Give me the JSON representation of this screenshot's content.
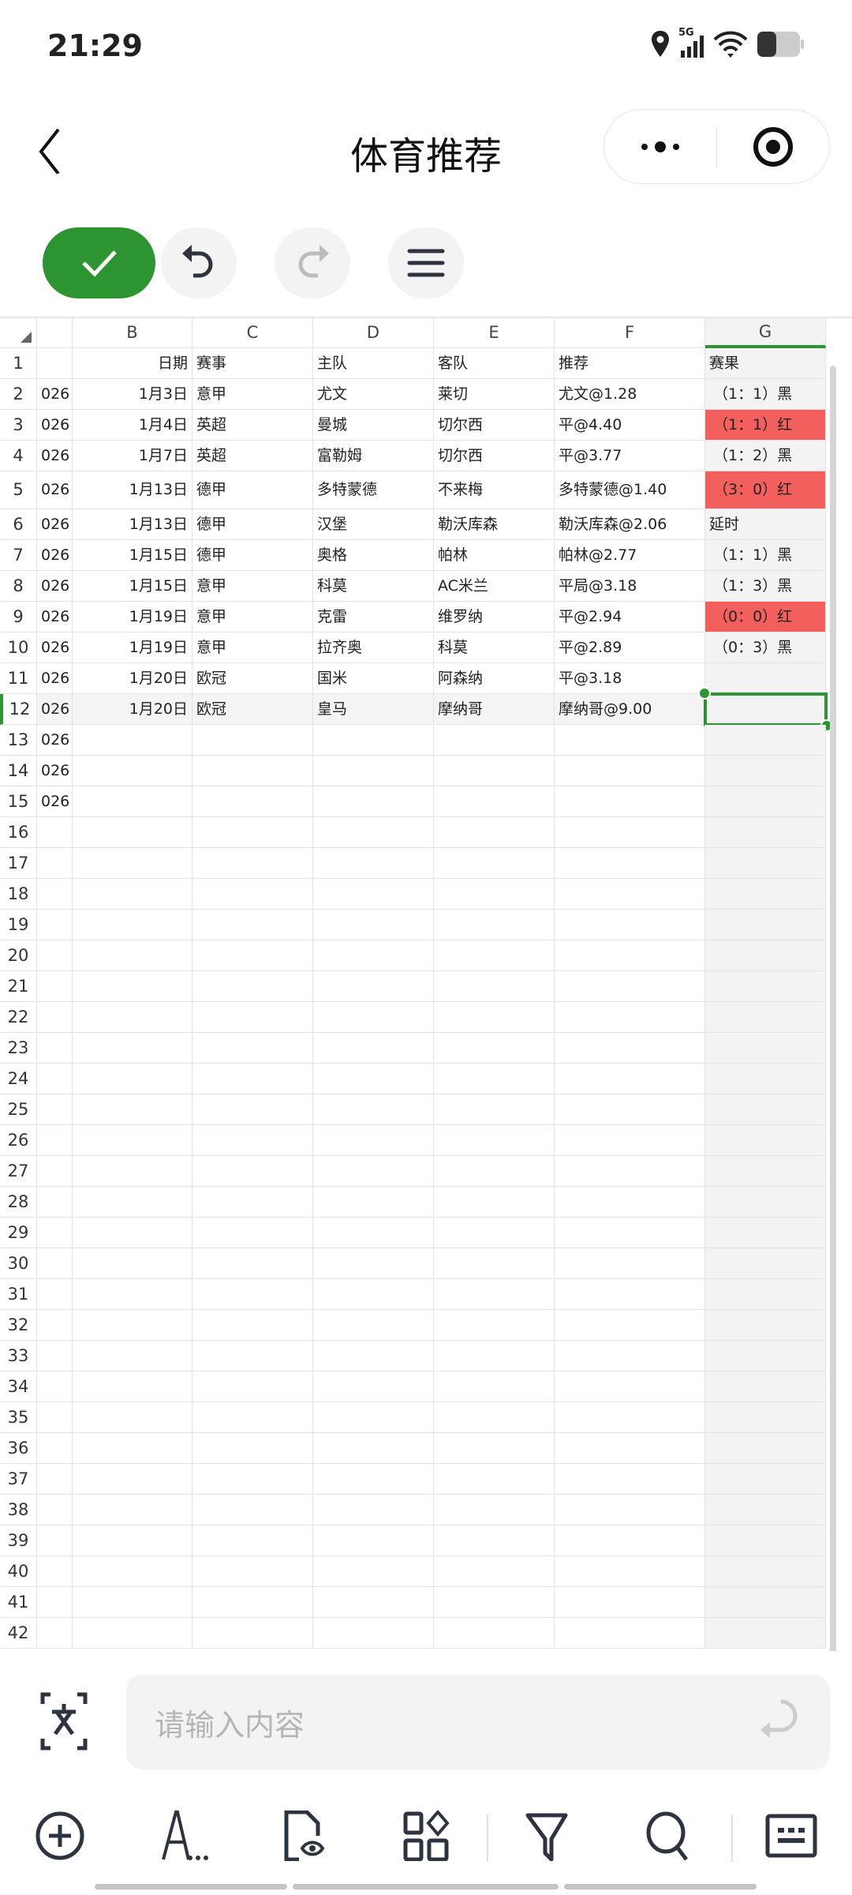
{
  "status_bar": {
    "time": "21:29",
    "network": "5G",
    "icons": [
      "location-icon",
      "signal-icon",
      "wifi-icon",
      "battery-icon"
    ]
  },
  "nav": {
    "title": "体育推荐",
    "icons": [
      "back-icon",
      "more-icon",
      "target-icon"
    ]
  },
  "toolbar": {
    "icons": [
      "check-icon",
      "undo-icon",
      "redo-icon",
      "menu-icon"
    ]
  },
  "sheet": {
    "columns": [
      "",
      "B",
      "C",
      "D",
      "E",
      "F",
      "G"
    ],
    "selected_column": "G",
    "selected_cell": "G12",
    "accent": "#2c9431",
    "highlight_red": "#f25f5c",
    "rows": [
      {
        "n": "1",
        "a": "",
        "b": "日期",
        "c": "赛事",
        "d": "主队",
        "e": "客队",
        "f": "推荐",
        "g": "赛果",
        "red": false
      },
      {
        "n": "2",
        "a": "026",
        "b": "1月3日",
        "c": "意甲",
        "d": "尤文",
        "e": "莱切",
        "f": "尤文@1.28",
        "g": "（1：1）黑",
        "red": false
      },
      {
        "n": "3",
        "a": "026",
        "b": "1月4日",
        "c": "英超",
        "d": "曼城",
        "e": "切尔西",
        "f": "平@4.40",
        "g": "（1：1）红",
        "red": true
      },
      {
        "n": "4",
        "a": "026",
        "b": "1月7日",
        "c": "英超",
        "d": "富勒姆",
        "e": "切尔西",
        "f": "平@3.77",
        "g": "（1：2）黑",
        "red": false
      },
      {
        "n": "5",
        "a": "026",
        "b": "1月13日",
        "c": "德甲",
        "d": "多特蒙德",
        "e": "不来梅",
        "f": "多特蒙德@1.40",
        "g": "（3：0）红",
        "red": true
      },
      {
        "n": "6",
        "a": "026",
        "b": "1月13日",
        "c": "德甲",
        "d": "汉堡",
        "e": "勒沃库森",
        "f": "勒沃库森@2.06",
        "g": "延时",
        "red": false
      },
      {
        "n": "7",
        "a": "026",
        "b": "1月15日",
        "c": "德甲",
        "d": "奥格",
        "e": "帕林",
        "f": "帕林@2.77",
        "g": "（1：1）黑",
        "red": false
      },
      {
        "n": "8",
        "a": "026",
        "b": "1月15日",
        "c": "意甲",
        "d": "科莫",
        "e": "AC米兰",
        "f": "平局@3.18",
        "g": "（1：3）黑",
        "red": false
      },
      {
        "n": "9",
        "a": "026",
        "b": "1月19日",
        "c": "意甲",
        "d": "克雷",
        "e": "维罗纳",
        "f": "平@2.94",
        "g": "（0：0）红",
        "red": true
      },
      {
        "n": "10",
        "a": "026",
        "b": "1月19日",
        "c": "意甲",
        "d": "拉齐奥",
        "e": "科莫",
        "f": "平@2.89",
        "g": "（0：3）黑",
        "red": false
      },
      {
        "n": "11",
        "a": "026",
        "b": "1月20日",
        "c": "欧冠",
        "d": "国米",
        "e": "阿森纳",
        "f": "平@3.18",
        "g": "",
        "red": false
      },
      {
        "n": "12",
        "a": "026",
        "b": "1月20日",
        "c": "欧冠",
        "d": "皇马",
        "e": "摩纳哥",
        "f": "摩纳哥@9.00",
        "g": "",
        "red": false
      },
      {
        "n": "13",
        "a": "026"
      },
      {
        "n": "14",
        "a": "026"
      },
      {
        "n": "15",
        "a": "026"
      },
      {
        "n": "16"
      },
      {
        "n": "17"
      },
      {
        "n": "18"
      },
      {
        "n": "19"
      },
      {
        "n": "20"
      },
      {
        "n": "21"
      },
      {
        "n": "22"
      },
      {
        "n": "23"
      },
      {
        "n": "24"
      },
      {
        "n": "25"
      },
      {
        "n": "26"
      },
      {
        "n": "27"
      },
      {
        "n": "28"
      },
      {
        "n": "29"
      },
      {
        "n": "30"
      },
      {
        "n": "31"
      },
      {
        "n": "32"
      },
      {
        "n": "33"
      },
      {
        "n": "34"
      },
      {
        "n": "35"
      },
      {
        "n": "36"
      },
      {
        "n": "37"
      },
      {
        "n": "38"
      },
      {
        "n": "39"
      },
      {
        "n": "40"
      },
      {
        "n": "41"
      },
      {
        "n": "42"
      }
    ]
  },
  "input": {
    "placeholder": "请输入内容"
  },
  "bottom_toolbar": {
    "icons": [
      "insert-icon",
      "text-format-icon",
      "file-preview-icon",
      "components-icon",
      "filter-icon",
      "search-icon",
      "keyboard-icon"
    ]
  }
}
